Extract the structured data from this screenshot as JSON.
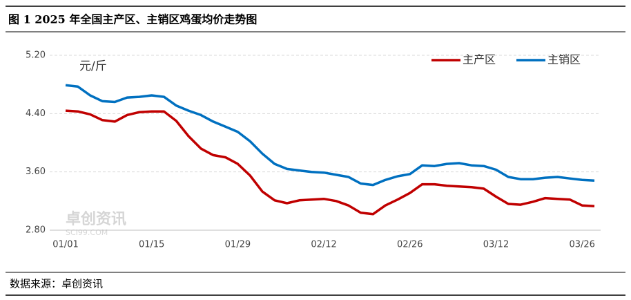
{
  "header": {
    "title": "图 1 2025 年全国主产区、主销区鸡蛋均价走势图"
  },
  "chart_data": {
    "type": "line",
    "y_unit": "元/斤",
    "watermark": [
      "卓创资讯",
      "SCI99.COM"
    ],
    "categories": [
      "01/01",
      null,
      null,
      null,
      null,
      null,
      null,
      "01/15",
      null,
      null,
      null,
      null,
      null,
      null,
      "01/29",
      null,
      null,
      null,
      null,
      null,
      null,
      "02/12",
      null,
      null,
      null,
      null,
      null,
      null,
      "02/26",
      null,
      null,
      null,
      null,
      null,
      null,
      "03/12",
      null,
      null,
      null,
      null,
      null,
      null,
      "03/26",
      null
    ],
    "series": [
      {
        "name": "主产区",
        "color": "#c00000",
        "values": [
          4.44,
          4.43,
          4.39,
          4.31,
          4.29,
          4.38,
          4.42,
          4.43,
          4.43,
          4.3,
          4.09,
          3.92,
          3.83,
          3.8,
          3.71,
          3.55,
          3.33,
          3.21,
          3.17,
          3.21,
          3.22,
          3.23,
          3.2,
          3.14,
          3.04,
          3.02,
          3.14,
          3.22,
          3.31,
          3.43,
          3.43,
          3.41,
          3.4,
          3.39,
          3.37,
          3.26,
          3.16,
          3.15,
          3.19,
          3.24,
          3.23,
          3.22,
          3.14,
          3.13
        ]
      },
      {
        "name": "主销区",
        "color": "#0070c0",
        "values": [
          4.79,
          4.77,
          4.65,
          4.57,
          4.56,
          4.62,
          4.63,
          4.65,
          4.63,
          4.51,
          4.44,
          4.38,
          4.29,
          4.22,
          4.15,
          4.02,
          3.85,
          3.71,
          3.64,
          3.62,
          3.6,
          3.59,
          3.56,
          3.53,
          3.44,
          3.42,
          3.49,
          3.54,
          3.57,
          3.69,
          3.68,
          3.71,
          3.72,
          3.69,
          3.68,
          3.63,
          3.53,
          3.5,
          3.5,
          3.52,
          3.53,
          3.51,
          3.49,
          3.48
        ]
      }
    ],
    "ylim": [
      2.8,
      5.2
    ],
    "yticks": [
      {
        "value": 2.8,
        "label": "2.80"
      },
      {
        "value": 3.6,
        "label": "3.60"
      },
      {
        "value": 4.4,
        "label": "4.40"
      },
      {
        "value": 5.2,
        "label": "5.20"
      }
    ],
    "grid": true,
    "legend": "top-right"
  },
  "footer": {
    "source": "数据来源：卓创资讯"
  }
}
